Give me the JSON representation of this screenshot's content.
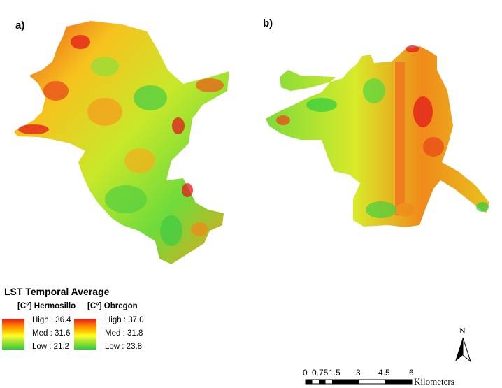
{
  "panels": {
    "a_label": "a)",
    "b_label": "b)"
  },
  "legend": {
    "title": "LST Temporal Average",
    "hermosillo": {
      "unit_label": "[C°] Hermosillo",
      "high": "High : 36.4",
      "med": "Med : 31.6",
      "low": "Low : 21.2"
    },
    "obregon": {
      "unit_label": "[C°] Obregon",
      "high": "High : 37.0",
      "med": "Med : 31.8",
      "low": "Low : 23.8"
    }
  },
  "scale_bar": {
    "ticks": [
      "0",
      "0.75",
      "1.5",
      "3",
      "4.5",
      "6"
    ],
    "units": "Kilometers"
  },
  "north_arrow": {
    "label": "N"
  },
  "colors": {
    "high": "#e31a1c",
    "med_high": "#ff7f00",
    "med": "#ffff33",
    "low": "#2ecc40"
  }
}
